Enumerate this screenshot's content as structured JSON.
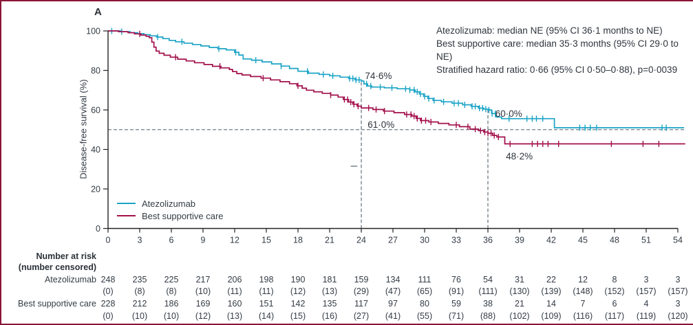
{
  "panel_label": "A",
  "border_color": "#8a1538",
  "stats_box": {
    "line1": "Atezolizumab: median NE (95% CI 36·1 months to NE)",
    "line2": "Best supportive care: median 35·3 months (95% CI 29·0 to NE)",
    "line3": "Stratified hazard ratio: 0·66 (95% CI 0·50–0·88), p=0·0039"
  },
  "chart_data": {
    "type": "line",
    "subtype": "kaplan-meier-step",
    "title": "",
    "xlabel": "",
    "ylabel": "Disease-free survival (%)",
    "xlim": [
      0,
      54
    ],
    "ylim": [
      0,
      100
    ],
    "x_ticks": [
      0,
      3,
      6,
      9,
      12,
      15,
      18,
      21,
      24,
      27,
      30,
      33,
      36,
      39,
      42,
      45,
      48,
      51,
      54
    ],
    "y_ticks": [
      0,
      20,
      40,
      60,
      80,
      100
    ],
    "grid": false,
    "legend_position": "lower-left-inside",
    "reference_lines": {
      "horizontal_pct": 50,
      "verticals": [
        {
          "month": 24,
          "top_pct": 74.6
        },
        {
          "month": 36,
          "top_pct": 60
        }
      ],
      "misc_mark": {
        "month1": 23.0,
        "month2": 23.62,
        "pct": 31.5
      },
      "color": "#51616c"
    },
    "series": [
      {
        "name": "Atezolizumab",
        "color": "#1aa3c6",
        "steps": [
          [
            0,
            100
          ],
          [
            1.2,
            99.6
          ],
          [
            2.1,
            99.1
          ],
          [
            2.8,
            98.6
          ],
          [
            3.4,
            98.1
          ],
          [
            4,
            97.5
          ],
          [
            4.6,
            96.9
          ],
          [
            5.2,
            96.1
          ],
          [
            5.8,
            95.2
          ],
          [
            6.4,
            94.5
          ],
          [
            7.2,
            93.8
          ],
          [
            8,
            93.1
          ],
          [
            8.8,
            92.4
          ],
          [
            9.6,
            91.6
          ],
          [
            10.4,
            91
          ],
          [
            11.2,
            90.4
          ],
          [
            12,
            89.2
          ],
          [
            12.4,
            87.8
          ],
          [
            12.8,
            85.8
          ],
          [
            13.6,
            85.2
          ],
          [
            14.6,
            84.3
          ],
          [
            15.5,
            83.3
          ],
          [
            16.4,
            82.2
          ],
          [
            17.2,
            81
          ],
          [
            18,
            79.6
          ],
          [
            19,
            78.6
          ],
          [
            20,
            78
          ],
          [
            21,
            77.3
          ],
          [
            22,
            76.6
          ],
          [
            22.8,
            75.9
          ],
          [
            23.4,
            75.2
          ],
          [
            24,
            74.6
          ],
          [
            24.25,
            73.2
          ],
          [
            24.6,
            72.1
          ],
          [
            25,
            71.6
          ],
          [
            26.2,
            71.2
          ],
          [
            27.4,
            70.7
          ],
          [
            28.6,
            70.1
          ],
          [
            29.1,
            69.2
          ],
          [
            29.5,
            68.1
          ],
          [
            29.9,
            66.9
          ],
          [
            30.3,
            65.8
          ],
          [
            30.8,
            64.8
          ],
          [
            31.6,
            64.1
          ],
          [
            32.6,
            63.4
          ],
          [
            33.6,
            62.6
          ],
          [
            34.4,
            61.8
          ],
          [
            35.1,
            60.9
          ],
          [
            35.6,
            60.4
          ],
          [
            36,
            60
          ],
          [
            36.35,
            58.2
          ],
          [
            36.75,
            56.4
          ],
          [
            37.3,
            55.6
          ],
          [
            42.2,
            55.6
          ],
          [
            42.3,
            51
          ],
          [
            54.6,
            51
          ]
        ],
        "censor_ticks": [
          0.35,
          1.3,
          4.7,
          7.0,
          10.5,
          12.1,
          14.0,
          16.4,
          18.9,
          20.4,
          21.3,
          22.9,
          23.2,
          23.5,
          23.8,
          24.5,
          24.9,
          25.8,
          26.9,
          28.2,
          28.6,
          29.0,
          29.3,
          29.6,
          30.0,
          30.4,
          30.9,
          31.8,
          32.8,
          33.2,
          33.8,
          34.5,
          34.8,
          35.2,
          35.5,
          35.8,
          36.1,
          36.4,
          36.7,
          38.0,
          39.7,
          40.2,
          40.6,
          41.2,
          44.7,
          45.2,
          45.7,
          46.3,
          52.5,
          52.9
        ]
      },
      {
        "name": "Best supportive care",
        "color": "#a20f4b",
        "steps": [
          [
            0,
            100
          ],
          [
            1,
            99.6
          ],
          [
            1.9,
            99.1
          ],
          [
            2.5,
            98.5
          ],
          [
            3.1,
            97.9
          ],
          [
            3.6,
            97.3
          ],
          [
            3.9,
            96.6
          ],
          [
            4.15,
            94.3
          ],
          [
            4.35,
            91.8
          ],
          [
            4.55,
            89.8
          ],
          [
            4.85,
            88.7
          ],
          [
            5.3,
            87.7
          ],
          [
            5.9,
            86.7
          ],
          [
            6.6,
            85.7
          ],
          [
            7.4,
            84.8
          ],
          [
            8.2,
            83.9
          ],
          [
            9.1,
            83
          ],
          [
            9.9,
            82.1
          ],
          [
            10.7,
            81.3
          ],
          [
            11.5,
            80.5
          ],
          [
            11.8,
            79.4
          ],
          [
            12.2,
            78.4
          ],
          [
            12.7,
            77.7
          ],
          [
            13.5,
            76.9
          ],
          [
            14.5,
            76.1
          ],
          [
            15.4,
            75.2
          ],
          [
            16.3,
            74.3
          ],
          [
            17.2,
            73.3
          ],
          [
            17.9,
            72.2
          ],
          [
            18.4,
            71
          ],
          [
            18.8,
            70
          ],
          [
            19.5,
            69.2
          ],
          [
            20.3,
            68.4
          ],
          [
            21.1,
            67.5
          ],
          [
            21.8,
            66.5
          ],
          [
            22.3,
            65.3
          ],
          [
            22.8,
            64
          ],
          [
            23.2,
            62.9
          ],
          [
            23.6,
            61.9
          ],
          [
            24,
            61
          ],
          [
            25.1,
            60.2
          ],
          [
            26.1,
            59.4
          ],
          [
            27.1,
            58.6
          ],
          [
            28.1,
            57.7
          ],
          [
            28.8,
            56.9
          ],
          [
            29.2,
            55.7
          ],
          [
            29.6,
            54.6
          ],
          [
            30.4,
            53.9
          ],
          [
            31.3,
            53.2
          ],
          [
            32.3,
            52.4
          ],
          [
            33.3,
            51.5
          ],
          [
            34.3,
            50.3
          ],
          [
            35.1,
            49.5
          ],
          [
            35.6,
            48.8
          ],
          [
            36,
            48.2
          ],
          [
            36.45,
            47.1
          ],
          [
            36.85,
            46.3
          ],
          [
            37.5,
            46.3
          ],
          [
            37.6,
            42.8
          ],
          [
            54.7,
            42.8
          ]
        ],
        "censor_ticks": [
          3.0,
          6.4,
          10.6,
          14.7,
          18.0,
          21.1,
          22.4,
          22.7,
          23.0,
          23.3,
          23.7,
          24.7,
          25.4,
          26.2,
          28.3,
          28.7,
          29.0,
          29.3,
          29.7,
          30.1,
          30.6,
          33.0,
          34.1,
          34.8,
          35.3,
          35.7,
          36.0,
          36.3,
          36.6,
          37.0,
          38.1,
          40.2,
          40.7,
          41.2,
          41.7,
          42.7,
          47.7,
          50.7,
          52.2
        ]
      }
    ],
    "annotations": [
      {
        "text": "74·6%",
        "month": 24.35,
        "pct": 79.8
      },
      {
        "text": "61·0%",
        "month": 24.6,
        "pct": 55.0
      },
      {
        "text": "60·0%",
        "month": 36.7,
        "pct": 60.6
      },
      {
        "text": "48·2%",
        "month": 37.7,
        "pct": 39.0
      }
    ]
  },
  "legend": {
    "items": [
      {
        "label": "Atezolizumab"
      },
      {
        "label": "Best supportive care"
      }
    ]
  },
  "risk_table": {
    "header_line1": "Number at risk",
    "header_line2": "(number censored)",
    "time_points": [
      0,
      3,
      6,
      9,
      12,
      15,
      18,
      21,
      24,
      27,
      30,
      33,
      36,
      39,
      42,
      45,
      48,
      51,
      54
    ],
    "rows": [
      {
        "label": "Atezolizumab",
        "n": [
          248,
          235,
          225,
          217,
          206,
          198,
          190,
          181,
          159,
          134,
          111,
          76,
          54,
          31,
          22,
          12,
          8,
          3,
          3
        ],
        "censored": [
          0,
          8,
          8,
          10,
          11,
          11,
          12,
          13,
          29,
          47,
          65,
          91,
          111,
          130,
          139,
          148,
          152,
          157,
          157
        ]
      },
      {
        "label": "Best supportive care",
        "n": [
          228,
          212,
          186,
          169,
          160,
          151,
          142,
          135,
          117,
          97,
          80,
          59,
          38,
          21,
          14,
          7,
          6,
          4,
          3
        ],
        "censored": [
          0,
          10,
          10,
          12,
          13,
          14,
          15,
          16,
          27,
          41,
          55,
          71,
          88,
          102,
          109,
          116,
          117,
          119,
          120
        ]
      }
    ]
  }
}
